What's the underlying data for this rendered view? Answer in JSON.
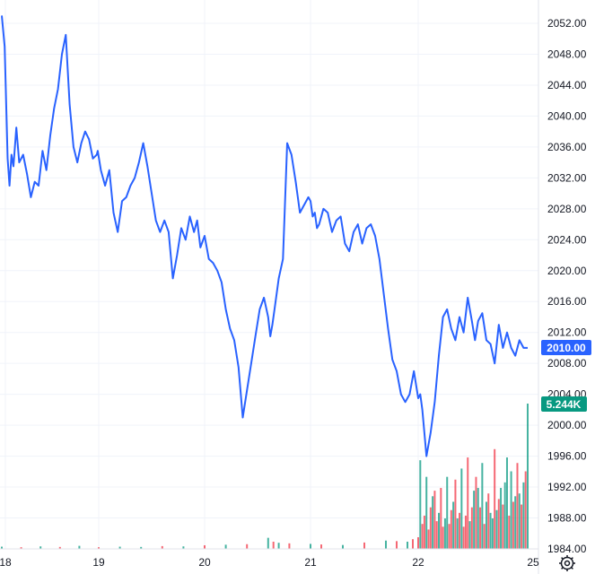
{
  "chart_data": {
    "type": "line",
    "title": "",
    "xlabel": "",
    "ylabel": "",
    "x_ticks": [
      "18",
      "19",
      "20",
      "21",
      "22",
      "25"
    ],
    "y_ticks": [
      "2052.00",
      "2048.00",
      "2044.00",
      "2040.00",
      "2036.00",
      "2032.00",
      "2028.00",
      "2024.00",
      "2020.00",
      "2016.00",
      "2012.00",
      "2008.00",
      "2004.00",
      "2000.00",
      "1996.00",
      "1992.00",
      "1988.00",
      "1984.00"
    ],
    "ylim": [
      1983.5,
      2054.5
    ],
    "grid": true,
    "last_price_label": "2010.00",
    "last_volume_label": "5.244K",
    "colors": {
      "price_line": "#2962ff",
      "price_badge": "#2962ff",
      "volume_badge": "#089981",
      "volume_up": "#089981",
      "volume_down": "#f23645"
    },
    "series": [
      {
        "kind": "price",
        "x": [
          18.0,
          18.03,
          18.06,
          18.08,
          18.1,
          18.12,
          18.15,
          18.18,
          18.22,
          18.26,
          18.3,
          18.34,
          18.38,
          18.42,
          18.46,
          18.5,
          18.54,
          18.58,
          18.62,
          18.66,
          18.7,
          18.74,
          18.78,
          18.82,
          18.86,
          18.9,
          18.94,
          18.98,
          18.99,
          19.02,
          19.06,
          19.1,
          19.14,
          19.18,
          19.22,
          19.26,
          19.3,
          19.34,
          19.38,
          19.42,
          19.46,
          19.5,
          19.54,
          19.58,
          19.62,
          19.66,
          19.7,
          19.74,
          19.78,
          19.82,
          19.86,
          19.9,
          19.93,
          19.96,
          20.0,
          20.04,
          20.08,
          20.12,
          20.16,
          20.2,
          20.24,
          20.28,
          20.32,
          20.36,
          20.4,
          20.44,
          20.48,
          20.52,
          20.56,
          20.6,
          20.62,
          20.64,
          20.66,
          20.7,
          20.74,
          20.78,
          20.82,
          20.86,
          20.9,
          20.94,
          20.98,
          21.0,
          21.02,
          21.04,
          21.06,
          21.08,
          21.12,
          21.16,
          21.2,
          21.24,
          21.28,
          21.32,
          21.36,
          21.4,
          21.44,
          21.48,
          21.52,
          21.56,
          21.6,
          21.64,
          21.68,
          21.72,
          21.76,
          21.8,
          21.84,
          21.88,
          21.92,
          21.96,
          22.0,
          22.02,
          22.04,
          22.06,
          22.08,
          22.12,
          22.16,
          22.2,
          22.24,
          22.28,
          22.32,
          22.36,
          22.4,
          22.44,
          22.48,
          22.52,
          22.55,
          22.58,
          22.62,
          22.66,
          22.7,
          22.74,
          22.78,
          22.82,
          22.86,
          22.9,
          22.94,
          22.98,
          23.02,
          23.06
        ],
        "values": [
          2053.0,
          2049.0,
          2034.5,
          2031.0,
          2035.0,
          2033.5,
          2038.5,
          2034.0,
          2035.0,
          2032.5,
          2029.5,
          2031.5,
          2031.0,
          2035.5,
          2033.0,
          2037.5,
          2041.0,
          2043.5,
          2048.0,
          2050.5,
          2041.5,
          2036.0,
          2034.0,
          2036.5,
          2038.0,
          2037.0,
          2034.5,
          2035.0,
          2035.5,
          2033.0,
          2031.0,
          2033.0,
          2027.5,
          2025.0,
          2029.0,
          2029.5,
          2031.0,
          2032.0,
          2034.0,
          2036.5,
          2033.5,
          2030.0,
          2026.5,
          2025.0,
          2026.5,
          2025.0,
          2019.0,
          2022.0,
          2025.5,
          2024.0,
          2027.0,
          2025.0,
          2026.5,
          2023.0,
          2024.5,
          2021.5,
          2021.0,
          2020.0,
          2018.5,
          2015.0,
          2012.5,
          2011.0,
          2007.5,
          2001.0,
          2004.5,
          2008.0,
          2011.5,
          2015.0,
          2016.5,
          2014.0,
          2011.5,
          2013.0,
          2015.0,
          2019.0,
          2021.5,
          2036.5,
          2035.0,
          2031.5,
          2027.5,
          2028.5,
          2029.5,
          2029.0,
          2027.0,
          2027.5,
          2025.5,
          2026.0,
          2028.0,
          2027.5,
          2025.0,
          2026.5,
          2027.0,
          2023.5,
          2022.5,
          2025.0,
          2026.0,
          2023.5,
          2025.5,
          2026.0,
          2024.5,
          2021.5,
          2017.0,
          2012.5,
          2008.5,
          2007.0,
          2004.0,
          2003.0,
          2004.0,
          2007.0,
          2003.5,
          2004.0,
          2002.0,
          1999.0,
          1996.0,
          1999.0,
          2003.0,
          2009.0,
          2014.0,
          2015.0,
          2012.5,
          2011.0,
          2014.0,
          2012.0,
          2016.5,
          2013.5,
          2011.0,
          2013.5,
          2014.5,
          2011.0,
          2010.5,
          2008.0,
          2013.0,
          2010.0,
          2012.0,
          2010.0,
          2009.0,
          2011.0,
          2010.0,
          2010.0
        ]
      },
      {
        "kind": "volume",
        "volume_ylim": [
          0,
          5244
        ],
        "x": [
          18.0,
          18.2,
          18.4,
          18.6,
          18.8,
          19.0,
          19.2,
          19.4,
          19.6,
          19.8,
          20.0,
          20.2,
          20.4,
          20.6,
          20.65,
          20.7,
          20.8,
          21.0,
          21.1,
          21.3,
          21.5,
          21.7,
          21.8,
          21.9,
          21.95,
          22.0,
          22.02,
          22.04,
          22.06,
          22.08,
          22.1,
          22.12,
          22.14,
          22.16,
          22.18,
          22.2,
          22.22,
          22.24,
          22.26,
          22.28,
          22.3,
          22.32,
          22.34,
          22.36,
          22.38,
          22.4,
          22.42,
          22.44,
          22.46,
          22.48,
          22.5,
          22.52,
          22.54,
          22.56,
          22.58,
          22.6,
          22.62,
          22.64,
          22.66,
          22.68,
          22.7,
          22.72,
          22.74,
          22.76,
          22.78,
          22.8,
          22.82,
          22.84,
          22.86,
          22.88,
          22.9,
          22.92,
          22.94,
          22.96,
          22.98,
          23.0,
          23.02,
          23.04,
          23.06
        ],
        "values": [
          80,
          60,
          90,
          70,
          110,
          60,
          80,
          70,
          100,
          90,
          130,
          150,
          170,
          400,
          260,
          220,
          200,
          180,
          160,
          140,
          230,
          300,
          280,
          260,
          350,
          420,
          3200,
          900,
          1200,
          2600,
          700,
          1500,
          1900,
          2100,
          1000,
          1300,
          2200,
          800,
          1100,
          2600,
          900,
          1400,
          1700,
          2500,
          1100,
          1300,
          2900,
          800,
          1200,
          3300,
          1000,
          1500,
          2100,
          2600,
          2200,
          1500,
          3100,
          900,
          1700,
          2000,
          1300,
          1100,
          3600,
          1400,
          1800,
          2200,
          1600,
          2400,
          3300,
          1200,
          2800,
          1700,
          1900,
          3100,
          2000,
          1600,
          2400,
          2800,
          5244
        ],
        "direction": [
          "up",
          "down",
          "up",
          "down",
          "up",
          "down",
          "up",
          "up",
          "down",
          "up",
          "down",
          "up",
          "down",
          "up",
          "down",
          "up",
          "down",
          "up",
          "down",
          "up",
          "down",
          "up",
          "down",
          "up",
          "down",
          "down",
          "up",
          "down",
          "down",
          "up",
          "down",
          "down",
          "up",
          "down",
          "down",
          "up",
          "down",
          "down",
          "up",
          "up",
          "down",
          "down",
          "up",
          "down",
          "up",
          "down",
          "up",
          "down",
          "down",
          "down",
          "up",
          "down",
          "up",
          "down",
          "up",
          "down",
          "up",
          "down",
          "up",
          "down",
          "up",
          "up",
          "down",
          "up",
          "down",
          "up",
          "down",
          "up",
          "up",
          "down",
          "up",
          "down",
          "up",
          "down",
          "up",
          "down",
          "up",
          "down",
          "up"
        ]
      }
    ]
  }
}
